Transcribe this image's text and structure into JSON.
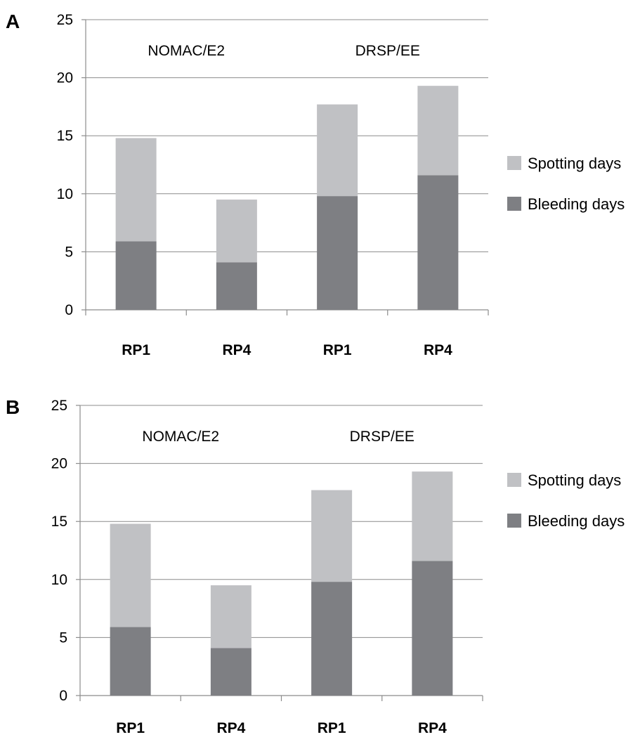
{
  "colors": {
    "spotting": "#c0c1c4",
    "bleeding": "#7e7f83"
  },
  "chart_data": [
    {
      "type": "bar",
      "stacked": true,
      "panel_label": "A",
      "title": "",
      "xlabel": "",
      "ylabel": "",
      "categories": [
        "RP1",
        "RP4",
        "RP1",
        "RP4"
      ],
      "groups": [
        {
          "label": "NOMAC/E2",
          "categories": [
            0,
            1
          ]
        },
        {
          "label": "DRSP/EE",
          "categories": [
            2,
            3
          ]
        }
      ],
      "series": [
        {
          "name": "Bleeding days",
          "values": [
            5.9,
            4.1,
            9.8,
            11.6
          ]
        },
        {
          "name": "Spotting days",
          "values": [
            8.9,
            5.4,
            7.9,
            7.7
          ]
        }
      ],
      "legend_order": [
        "Spotting days",
        "Bleeding days"
      ],
      "legend_position": "right",
      "ylim": [
        0,
        25
      ],
      "yticks": [
        0,
        5,
        10,
        15,
        20,
        25
      ],
      "grid": true
    },
    {
      "type": "bar",
      "stacked": true,
      "panel_label": "B",
      "title": "",
      "xlabel": "",
      "ylabel": "",
      "categories": [
        "RP1",
        "RP4",
        "RP1",
        "RP4"
      ],
      "groups": [
        {
          "label": "NOMAC/E2",
          "categories": [
            0,
            1
          ]
        },
        {
          "label": "DRSP/EE",
          "categories": [
            2,
            3
          ]
        }
      ],
      "series": [
        {
          "name": "Bleeding days",
          "values": [
            5.9,
            4.1,
            9.8,
            11.6
          ]
        },
        {
          "name": "Spotting days",
          "values": [
            8.9,
            5.4,
            7.9,
            7.7
          ]
        }
      ],
      "legend_order": [
        "Spotting days",
        "Bleeding days"
      ],
      "legend_position": "right",
      "ylim": [
        0,
        25
      ],
      "yticks": [
        0,
        5,
        10,
        15,
        20,
        25
      ],
      "grid": true
    }
  ]
}
